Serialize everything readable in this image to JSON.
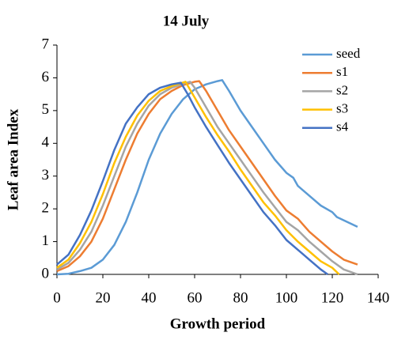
{
  "chart_data": {
    "type": "line",
    "title": "14 July",
    "x_label": "Growth period",
    "y_label": "Leaf area Index",
    "xlim": [
      0,
      140
    ],
    "xticks": [
      0,
      20,
      40,
      60,
      80,
      100,
      120,
      140
    ],
    "ylim": [
      0,
      7
    ],
    "yticks": [
      0,
      1,
      2,
      3,
      4,
      5,
      6,
      7
    ],
    "grid": false,
    "legend": "upper right",
    "series": [
      {
        "name": "seed",
        "color": "#5b9bd5",
        "x": [
          0,
          5,
          10,
          15,
          20,
          25,
          30,
          35,
          40,
          45,
          50,
          55,
          60,
          65,
          70,
          72,
          75,
          80,
          85,
          90,
          95,
          100,
          103,
          105,
          110,
          115,
          120,
          122,
          125,
          131
        ],
        "values": [
          0,
          0.02,
          0.1,
          0.2,
          0.45,
          0.9,
          1.6,
          2.5,
          3.5,
          4.3,
          4.9,
          5.35,
          5.65,
          5.8,
          5.9,
          5.93,
          5.6,
          5.0,
          4.5,
          4.0,
          3.5,
          3.1,
          2.95,
          2.7,
          2.4,
          2.1,
          1.9,
          1.75,
          1.65,
          1.45
        ]
      },
      {
        "name": "s1",
        "color": "#ed7d31",
        "x": [
          0,
          5,
          10,
          15,
          20,
          25,
          30,
          35,
          40,
          45,
          50,
          55,
          60,
          62,
          65,
          70,
          75,
          80,
          85,
          90,
          95,
          100,
          105,
          110,
          115,
          120,
          125,
          131
        ],
        "values": [
          0.1,
          0.25,
          0.55,
          1.0,
          1.7,
          2.6,
          3.5,
          4.3,
          4.9,
          5.35,
          5.6,
          5.78,
          5.88,
          5.9,
          5.6,
          5.0,
          4.4,
          3.9,
          3.4,
          2.9,
          2.4,
          1.95,
          1.7,
          1.3,
          1.0,
          0.7,
          0.45,
          0.3
        ]
      },
      {
        "name": "s2",
        "color": "#a5a5a5",
        "x": [
          0,
          5,
          10,
          15,
          20,
          25,
          30,
          35,
          40,
          45,
          50,
          55,
          58,
          60,
          65,
          70,
          75,
          80,
          85,
          90,
          95,
          100,
          105,
          110,
          115,
          120,
          125,
          131
        ],
        "values": [
          0.15,
          0.35,
          0.75,
          1.3,
          2.1,
          3.0,
          3.9,
          4.6,
          5.15,
          5.5,
          5.7,
          5.82,
          5.88,
          5.7,
          5.1,
          4.5,
          4.0,
          3.5,
          3.0,
          2.5,
          2.05,
          1.6,
          1.35,
          1.0,
          0.7,
          0.4,
          0.15,
          0
        ]
      },
      {
        "name": "s3",
        "color": "#ffc000",
        "x": [
          0,
          5,
          10,
          15,
          20,
          25,
          30,
          35,
          40,
          45,
          50,
          56,
          60,
          65,
          70,
          75,
          80,
          85,
          90,
          95,
          100,
          105,
          110,
          115,
          120,
          123
        ],
        "values": [
          0.2,
          0.45,
          0.95,
          1.6,
          2.45,
          3.4,
          4.2,
          4.85,
          5.3,
          5.6,
          5.75,
          5.88,
          5.4,
          4.8,
          4.25,
          3.75,
          3.2,
          2.7,
          2.2,
          1.8,
          1.35,
          1.0,
          0.7,
          0.4,
          0.2,
          0
        ]
      },
      {
        "name": "s4",
        "color": "#4472c4",
        "x": [
          0,
          5,
          10,
          15,
          20,
          25,
          30,
          35,
          40,
          45,
          50,
          54,
          57,
          60,
          65,
          70,
          75,
          80,
          85,
          90,
          95,
          100,
          105,
          110,
          115,
          118
        ],
        "values": [
          0.3,
          0.6,
          1.2,
          1.95,
          2.85,
          3.8,
          4.6,
          5.1,
          5.5,
          5.7,
          5.8,
          5.85,
          5.5,
          5.1,
          4.5,
          3.95,
          3.4,
          2.9,
          2.4,
          1.9,
          1.5,
          1.05,
          0.75,
          0.45,
          0.15,
          0
        ]
      }
    ]
  }
}
